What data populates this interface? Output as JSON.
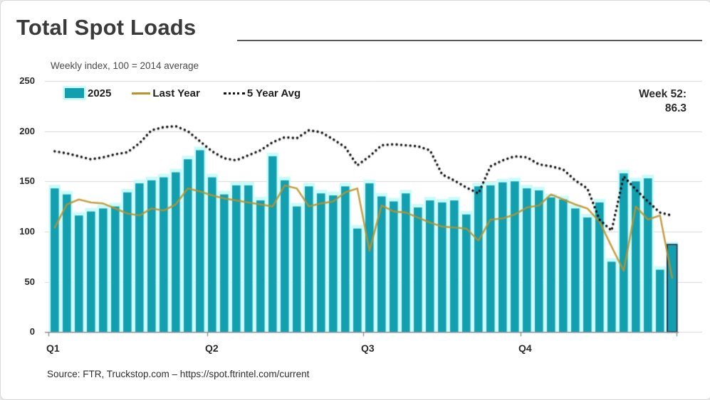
{
  "title": "Total Spot Loads",
  "subtitle": "Weekly index, 100 = 2014 average",
  "legend": {
    "bar_label": "2025",
    "line_label": "Last Year",
    "dotted_label": "5 Year Avg"
  },
  "annotation": {
    "week_label": "Week 52:",
    "week_value": "86.3"
  },
  "source_text": "Source: FTR, Truckstop.com – https://spot.ftrintel.com/current",
  "colors": {
    "bar": "#129FB0",
    "bar_glow": "#C9FBF9",
    "line": "#BB922B",
    "dotted": "#141414",
    "highlight_border": "#1B3650",
    "grid": "#D8D8D8",
    "axis": "#8F8F8F"
  },
  "chart_data": {
    "type": "bar",
    "title": "Total Spot Loads",
    "subtitle": "Weekly index, 100 = 2014 average",
    "x_axis": {
      "tick_labels": [
        "Q1",
        "Q2",
        "Q3",
        "Q4"
      ],
      "weeks_per_quarter": 13,
      "total_weeks": 52
    },
    "y_axis": {
      "ticks": [
        0,
        50,
        100,
        150,
        200,
        250
      ],
      "range": [
        0,
        250
      ],
      "grid": true
    },
    "series": [
      {
        "name": "2025",
        "type": "bar",
        "values": [
          143,
          137,
          116,
          120,
          123,
          125,
          139,
          148,
          151,
          154,
          159,
          172,
          181,
          154,
          137,
          146,
          146,
          131,
          175,
          151,
          125,
          145,
          138,
          136,
          145,
          103,
          148,
          135,
          130,
          138,
          124,
          131,
          129,
          131,
          117,
          145,
          146,
          149,
          150,
          143,
          141,
          134,
          132,
          123,
          114,
          129,
          70,
          158,
          150,
          153,
          62,
          86.3
        ]
      },
      {
        "name": "Last Year",
        "type": "line",
        "values": [
          104,
          127,
          132,
          129,
          128,
          123,
          118,
          116,
          123,
          121,
          127,
          143,
          140,
          136,
          133,
          131,
          129,
          127,
          125,
          146,
          143,
          125,
          128,
          130,
          139,
          143,
          81,
          126,
          120,
          119,
          114,
          109,
          105,
          104,
          103,
          91,
          112,
          113,
          117,
          124,
          126,
          137,
          132,
          127,
          123,
          110,
          85,
          61,
          125,
          112,
          116,
          54
        ]
      },
      {
        "name": "5 Year Avg",
        "type": "dotted-line",
        "values": [
          180,
          178,
          175,
          172,
          174,
          177,
          179,
          188,
          201,
          204,
          205,
          200,
          190,
          180,
          173,
          171,
          176,
          181,
          189,
          194,
          193,
          201,
          199,
          192,
          184,
          166,
          175,
          186,
          187,
          186,
          185,
          181,
          157,
          151,
          144,
          138,
          165,
          171,
          175,
          174,
          167,
          165,
          162,
          151,
          143,
          112,
          101,
          155,
          142,
          130,
          119,
          116
        ]
      }
    ],
    "highlight": {
      "week_index": 52,
      "label": "Week 52:",
      "value": 86.3
    },
    "legend_position": "top-left"
  }
}
